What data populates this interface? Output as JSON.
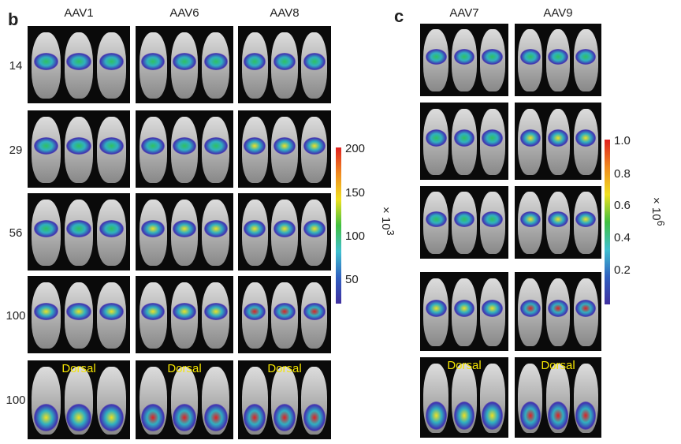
{
  "panel_b": {
    "label": "b",
    "columns": [
      "AAV1",
      "AAV6",
      "AAV8"
    ],
    "rows": [
      "14",
      "29",
      "56",
      "100",
      "100"
    ],
    "dorsal_label": "Dorsal",
    "colorbar": {
      "ticks": [
        "200",
        "150",
        "100",
        "50"
      ],
      "unit": "× 10",
      "exponent": "3",
      "min": 25,
      "max": 200
    }
  },
  "panel_c": {
    "label": "c",
    "columns": [
      "AAV7",
      "AAV9"
    ],
    "dorsal_label": "Dorsal",
    "colorbar": {
      "ticks": [
        "1.0",
        "0.8",
        "0.6",
        "0.4",
        "0.2"
      ],
      "unit": "× 10",
      "exponent": "6",
      "min": 0.05,
      "max": 1.0
    }
  },
  "colors": {
    "low": "#3a2fa0",
    "mid": "#2fc060",
    "high": "#e02020"
  }
}
